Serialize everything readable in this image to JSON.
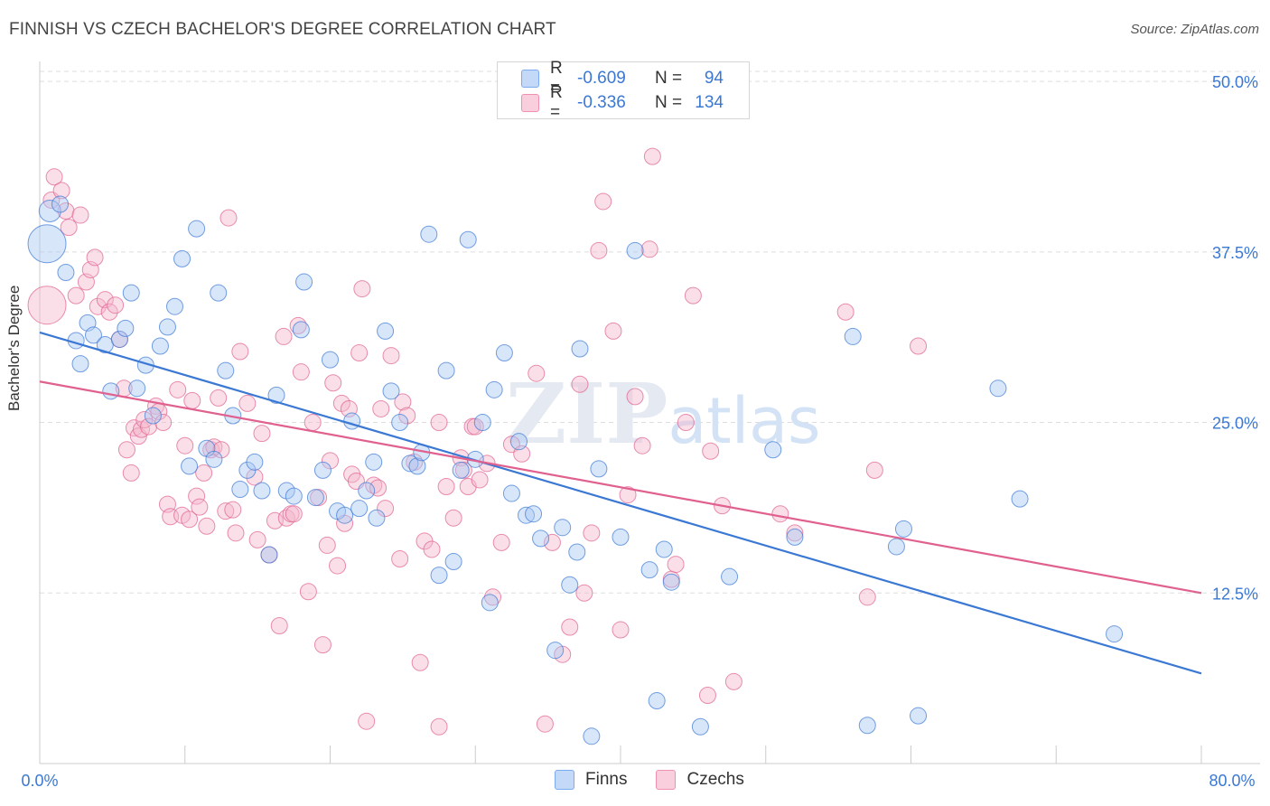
{
  "title": "FINNISH VS CZECH BACHELOR'S DEGREE CORRELATION CHART",
  "source": "Source: ZipAtlas.com",
  "watermark": "ZIPatlas",
  "legend": {
    "rows": [
      {
        "r_label": "R =",
        "r_value": "-0.609",
        "n_label": "N =",
        "n_value": "94",
        "color": "#7aaaf0"
      },
      {
        "r_label": "R =",
        "r_value": "-0.336",
        "n_label": "N =",
        "n_value": "134",
        "color": "#f090b0"
      }
    ]
  },
  "bottom_legend": [
    {
      "name": "Finns",
      "color": "#7aaaf0"
    },
    {
      "name": "Czechs",
      "color": "#f090b0"
    }
  ],
  "chart_data": {
    "type": "scatter",
    "ylabel": "Bachelor's Degree",
    "xlim": [
      0,
      80
    ],
    "ylim": [
      0,
      51
    ],
    "x_tick_labels": [
      "0.0%",
      "80.0%"
    ],
    "y_ticks": [
      12.5,
      25.0,
      37.5,
      50.0
    ],
    "y_tick_labels": [
      "12.5%",
      "25.0%",
      "37.5%",
      "50.0%"
    ],
    "grid": true,
    "series": [
      {
        "name": "Finns",
        "color": "#3a78d4",
        "fill": "#a9c8f3",
        "trend": [
          [
            0,
            31.6
          ],
          [
            80,
            6.6
          ]
        ],
        "points": [
          [
            0.7,
            40.5,
            2
          ],
          [
            1.4,
            41,
            1
          ],
          [
            1.8,
            36,
            1
          ],
          [
            2.5,
            31,
            1
          ],
          [
            2.8,
            29.3,
            1
          ],
          [
            3.3,
            32.3,
            1
          ],
          [
            3.7,
            31.4,
            1
          ],
          [
            4.5,
            30.7,
            1
          ],
          [
            4.9,
            27.3,
            1
          ],
          [
            5.5,
            31.1,
            1
          ],
          [
            5.9,
            31.9,
            1
          ],
          [
            6.3,
            34.5,
            1
          ],
          [
            6.7,
            27.5,
            1
          ],
          [
            7.3,
            29.2,
            1
          ],
          [
            7.8,
            25.5,
            1
          ],
          [
            8.3,
            30.6,
            1
          ],
          [
            8.8,
            32,
            1
          ],
          [
            9.3,
            33.5,
            1
          ],
          [
            9.8,
            37,
            1
          ],
          [
            10.3,
            21.8,
            1
          ],
          [
            10.8,
            39.2,
            1
          ],
          [
            11.5,
            23.1,
            1
          ],
          [
            12,
            22.3,
            1
          ],
          [
            12.3,
            34.5,
            1
          ],
          [
            12.8,
            28.8,
            1
          ],
          [
            13.3,
            25.5,
            1
          ],
          [
            13.8,
            20.1,
            1
          ],
          [
            14.3,
            21.5,
            1
          ],
          [
            14.8,
            22.1,
            1
          ],
          [
            15.3,
            20,
            1
          ],
          [
            15.8,
            15.3,
            1
          ],
          [
            16.3,
            27,
            1
          ],
          [
            17,
            20,
            1
          ],
          [
            17.5,
            19.6,
            1
          ],
          [
            18,
            31.8,
            1
          ],
          [
            18.2,
            35.3,
            1
          ],
          [
            19,
            19.5,
            1
          ],
          [
            19.5,
            21.5,
            1
          ],
          [
            20,
            29.6,
            1
          ],
          [
            20.5,
            18.5,
            1
          ],
          [
            21,
            18.2,
            1
          ],
          [
            21.5,
            25.1,
            1
          ],
          [
            22,
            18.7,
            1
          ],
          [
            22.5,
            20,
            1
          ],
          [
            23,
            22.1,
            1
          ],
          [
            23.2,
            18,
            1
          ],
          [
            23.8,
            31.7,
            1
          ],
          [
            24.2,
            27.3,
            1
          ],
          [
            24.8,
            25,
            1
          ],
          [
            25.5,
            22,
            1
          ],
          [
            26,
            21.8,
            1
          ],
          [
            26.3,
            22.8,
            1
          ],
          [
            26.8,
            38.8,
            1
          ],
          [
            27.5,
            13.8,
            1
          ],
          [
            28,
            28.8,
            1
          ],
          [
            28.5,
            14.8,
            1
          ],
          [
            29,
            21.5,
            1
          ],
          [
            29.5,
            38.4,
            1
          ],
          [
            30,
            22.3,
            1
          ],
          [
            30.5,
            25,
            1
          ],
          [
            31,
            11.8,
            1
          ],
          [
            31.3,
            27.4,
            1
          ],
          [
            32,
            30.1,
            1
          ],
          [
            32.5,
            19.8,
            1
          ],
          [
            33,
            23.6,
            1
          ],
          [
            33.5,
            18.2,
            1
          ],
          [
            34,
            18.3,
            1
          ],
          [
            34.5,
            16.5,
            1
          ],
          [
            35.5,
            8.3,
            1
          ],
          [
            36,
            17.3,
            1
          ],
          [
            36.5,
            13.1,
            1
          ],
          [
            37,
            15.5,
            1
          ],
          [
            37.2,
            30.4,
            1
          ],
          [
            38,
            2,
            1
          ],
          [
            38.5,
            21.6,
            1
          ],
          [
            40,
            16.6,
            1
          ],
          [
            41,
            37.6,
            1
          ],
          [
            42,
            14.2,
            1
          ],
          [
            42.5,
            4.6,
            1
          ],
          [
            43,
            15.7,
            1
          ],
          [
            43.5,
            13.3,
            1
          ],
          [
            45.5,
            2.7,
            1
          ],
          [
            47.5,
            13.7,
            1
          ],
          [
            50.5,
            23,
            1
          ],
          [
            52,
            16.6,
            1
          ],
          [
            56,
            31.3,
            1
          ],
          [
            57,
            2.8,
            1
          ],
          [
            59,
            15.9,
            1
          ],
          [
            59.5,
            17.2,
            1
          ],
          [
            60.5,
            3.5,
            1
          ],
          [
            66,
            27.5,
            1
          ],
          [
            67.5,
            19.4,
            1
          ],
          [
            74,
            9.5,
            1
          ],
          [
            0.5,
            38.1,
            3
          ]
        ]
      },
      {
        "name": "Czechs",
        "color": "#e0608e",
        "fill": "#f5b7cc",
        "trend": [
          [
            0,
            28
          ],
          [
            80,
            12.5
          ]
        ],
        "points": [
          [
            0.5,
            33.6,
            3
          ],
          [
            0.8,
            41.3,
            1
          ],
          [
            1,
            43,
            1
          ],
          [
            1.5,
            42,
            1
          ],
          [
            1.8,
            40.5,
            1
          ],
          [
            2,
            39.3,
            1
          ],
          [
            2.5,
            34.3,
            1
          ],
          [
            2.8,
            40.2,
            1
          ],
          [
            3.2,
            35.3,
            1
          ],
          [
            3.5,
            36.2,
            1
          ],
          [
            3.8,
            37.1,
            1
          ],
          [
            4,
            33.5,
            1
          ],
          [
            4.5,
            34,
            1
          ],
          [
            4.8,
            33.1,
            1
          ],
          [
            5.2,
            33.6,
            1
          ],
          [
            5.5,
            31.1,
            1
          ],
          [
            5.8,
            27.5,
            1
          ],
          [
            6,
            23,
            1
          ],
          [
            6.3,
            21.3,
            1
          ],
          [
            6.5,
            24.6,
            1
          ],
          [
            6.8,
            24,
            1
          ],
          [
            7,
            24.5,
            1
          ],
          [
            7.2,
            25.2,
            1
          ],
          [
            7.5,
            24.7,
            1
          ],
          [
            8,
            26.2,
            1
          ],
          [
            8.2,
            25.8,
            1
          ],
          [
            8.5,
            25,
            1
          ],
          [
            8.8,
            19,
            1
          ],
          [
            9,
            18.1,
            1
          ],
          [
            9.5,
            27.4,
            1
          ],
          [
            9.8,
            18.2,
            1
          ],
          [
            10,
            23.3,
            1
          ],
          [
            10.3,
            17.9,
            1
          ],
          [
            10.5,
            26.6,
            1
          ],
          [
            10.8,
            19.6,
            1
          ],
          [
            11,
            18.8,
            1
          ],
          [
            11.3,
            21.3,
            1
          ],
          [
            11.5,
            17.4,
            1
          ],
          [
            11.8,
            23,
            1
          ],
          [
            12,
            23.2,
            1
          ],
          [
            12.3,
            26.8,
            1
          ],
          [
            12.5,
            23,
            1
          ],
          [
            12.8,
            18.5,
            1
          ],
          [
            13,
            40,
            1
          ],
          [
            13.3,
            18.6,
            1
          ],
          [
            13.5,
            16.9,
            1
          ],
          [
            13.8,
            30.2,
            1
          ],
          [
            14.3,
            26.4,
            1
          ],
          [
            14.8,
            21,
            1
          ],
          [
            15,
            16.4,
            1
          ],
          [
            15.3,
            24.2,
            1
          ],
          [
            15.8,
            15.3,
            1
          ],
          [
            16.2,
            17.8,
            1
          ],
          [
            16.5,
            10.1,
            1
          ],
          [
            16.8,
            31.3,
            1
          ],
          [
            17,
            18,
            1
          ],
          [
            17.3,
            18.3,
            1
          ],
          [
            17.5,
            18.3,
            1
          ],
          [
            17.8,
            32.1,
            1
          ],
          [
            18,
            28.7,
            1
          ],
          [
            18.5,
            12.6,
            1
          ],
          [
            18.8,
            25,
            1
          ],
          [
            19.2,
            19.5,
            1
          ],
          [
            19.5,
            8.7,
            1
          ],
          [
            19.8,
            16,
            1
          ],
          [
            20,
            22.2,
            1
          ],
          [
            20.2,
            27.9,
            1
          ],
          [
            20.5,
            14.5,
            1
          ],
          [
            20.8,
            26.4,
            1
          ],
          [
            21,
            17.6,
            1
          ],
          [
            21.3,
            26,
            1
          ],
          [
            21.5,
            21.2,
            1
          ],
          [
            21.8,
            20.7,
            1
          ],
          [
            22,
            30.1,
            1
          ],
          [
            22.2,
            34.8,
            1
          ],
          [
            22.5,
            3.1,
            1
          ],
          [
            23,
            20.4,
            1
          ],
          [
            23.3,
            20.2,
            1
          ],
          [
            23.5,
            26,
            1
          ],
          [
            23.8,
            18.7,
            1
          ],
          [
            24.2,
            29.9,
            1
          ],
          [
            24.8,
            15,
            1
          ],
          [
            25,
            26.5,
            1
          ],
          [
            25.3,
            25.5,
            1
          ],
          [
            25.8,
            22.1,
            1
          ],
          [
            26.2,
            7.4,
            1
          ],
          [
            26.5,
            16.3,
            1
          ],
          [
            27,
            15.7,
            1
          ],
          [
            27.5,
            25,
            1
          ],
          [
            28,
            20.3,
            1
          ],
          [
            28.5,
            18,
            1
          ],
          [
            29,
            22.4,
            1
          ],
          [
            29.2,
            21.5,
            1
          ],
          [
            29.5,
            20.3,
            1
          ],
          [
            29.8,
            24.7,
            1
          ],
          [
            30,
            24.7,
            1
          ],
          [
            30.3,
            20.8,
            1
          ],
          [
            30.8,
            22,
            1
          ],
          [
            31.2,
            12.2,
            1
          ],
          [
            31.8,
            16.2,
            1
          ],
          [
            32.5,
            23.4,
            1
          ],
          [
            33.2,
            22.7,
            1
          ],
          [
            34.2,
            28.6,
            1
          ],
          [
            34.8,
            2.9,
            1
          ],
          [
            35.3,
            16.2,
            1
          ],
          [
            36,
            8,
            1
          ],
          [
            36.5,
            10,
            1
          ],
          [
            37.2,
            27.8,
            1
          ],
          [
            37.5,
            12.5,
            1
          ],
          [
            38,
            16.9,
            1
          ],
          [
            38.5,
            37.6,
            1
          ],
          [
            38.8,
            41.2,
            1
          ],
          [
            39.5,
            31.7,
            1
          ],
          [
            40,
            9.8,
            1
          ],
          [
            40.5,
            19.7,
            1
          ],
          [
            41,
            26.9,
            1
          ],
          [
            41.5,
            23.3,
            1
          ],
          [
            42,
            37.7,
            1
          ],
          [
            42.2,
            44.5,
            1
          ],
          [
            43.5,
            13.5,
            1
          ],
          [
            43.8,
            14.6,
            1
          ],
          [
            44.5,
            25,
            1
          ],
          [
            45,
            34.3,
            1
          ],
          [
            46,
            5,
            1
          ],
          [
            46.2,
            22.9,
            1
          ],
          [
            47,
            18.9,
            1
          ],
          [
            47.8,
            6,
            1
          ],
          [
            51,
            18.3,
            1
          ],
          [
            52,
            16.9,
            1
          ],
          [
            55.5,
            33.1,
            1
          ],
          [
            57,
            12.2,
            1
          ],
          [
            57.5,
            21.5,
            1
          ],
          [
            60.5,
            30.6,
            1
          ],
          [
            27.5,
            2.7,
            1
          ]
        ]
      }
    ]
  }
}
